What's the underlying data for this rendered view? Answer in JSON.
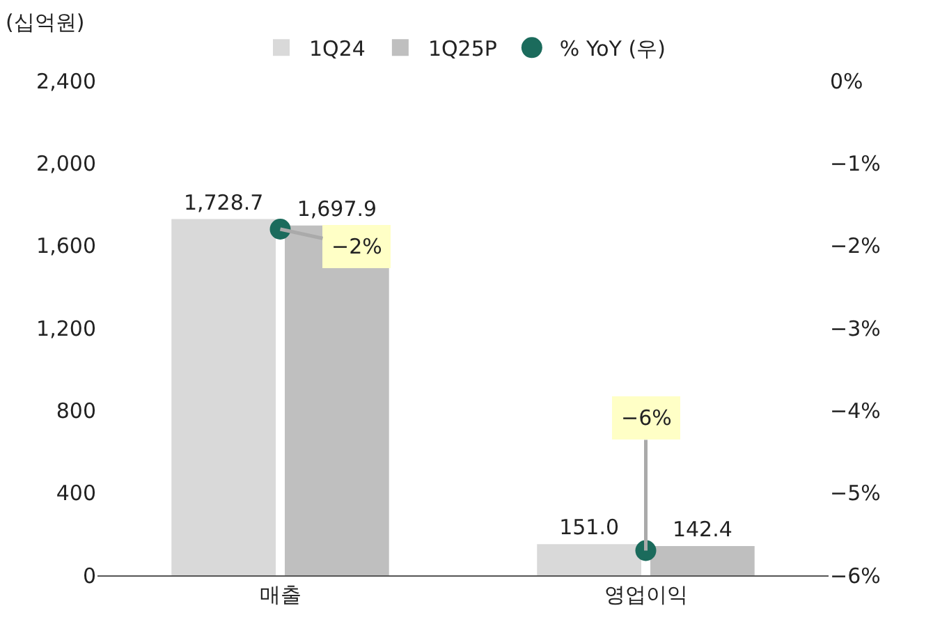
{
  "chart_data": {
    "type": "bar",
    "ylabel": "(십억원)",
    "categories": [
      "매출",
      "영업이익"
    ],
    "series": [
      {
        "name": "1Q24",
        "color": "#d9d9d9",
        "values": [
          1728.7,
          151.0
        ],
        "value_labels": [
          "1,728.7",
          "151.0"
        ]
      },
      {
        "name": "1Q25P",
        "color": "#bfbfbf",
        "values": [
          1697.9,
          142.4
        ],
        "value_labels": [
          "1,697.9",
          "142.4"
        ]
      },
      {
        "name": "% YoY (우)",
        "type": "scatter",
        "axis": "y2",
        "marker": "circle",
        "color": "#1b6b5c",
        "values": [
          -1.8,
          -5.7
        ],
        "value_labels": [
          "−2%",
          "−6%"
        ]
      }
    ],
    "legend": "top",
    "grid": false,
    "ylim": [
      0,
      2400
    ],
    "yticks": [
      0,
      400,
      800,
      {
        "value": 1200,
        "label": "1,200"
      },
      {
        "value": 1600,
        "label": "1,600"
      },
      {
        "value": 2000,
        "label": "2,000"
      },
      {
        "value": 2400,
        "label": "2,400"
      }
    ],
    "y2lim": [
      -6,
      0
    ],
    "y2ticks": [
      {
        "value": 0,
        "label": "0%"
      },
      {
        "value": -1,
        "label": "−1%"
      },
      {
        "value": -2,
        "label": "−2%"
      },
      {
        "value": -3,
        "label": "−3%"
      },
      {
        "value": -4,
        "label": "−4%"
      },
      {
        "value": -5,
        "label": "−5%"
      },
      {
        "value": -6,
        "label": "−6%"
      }
    ]
  }
}
